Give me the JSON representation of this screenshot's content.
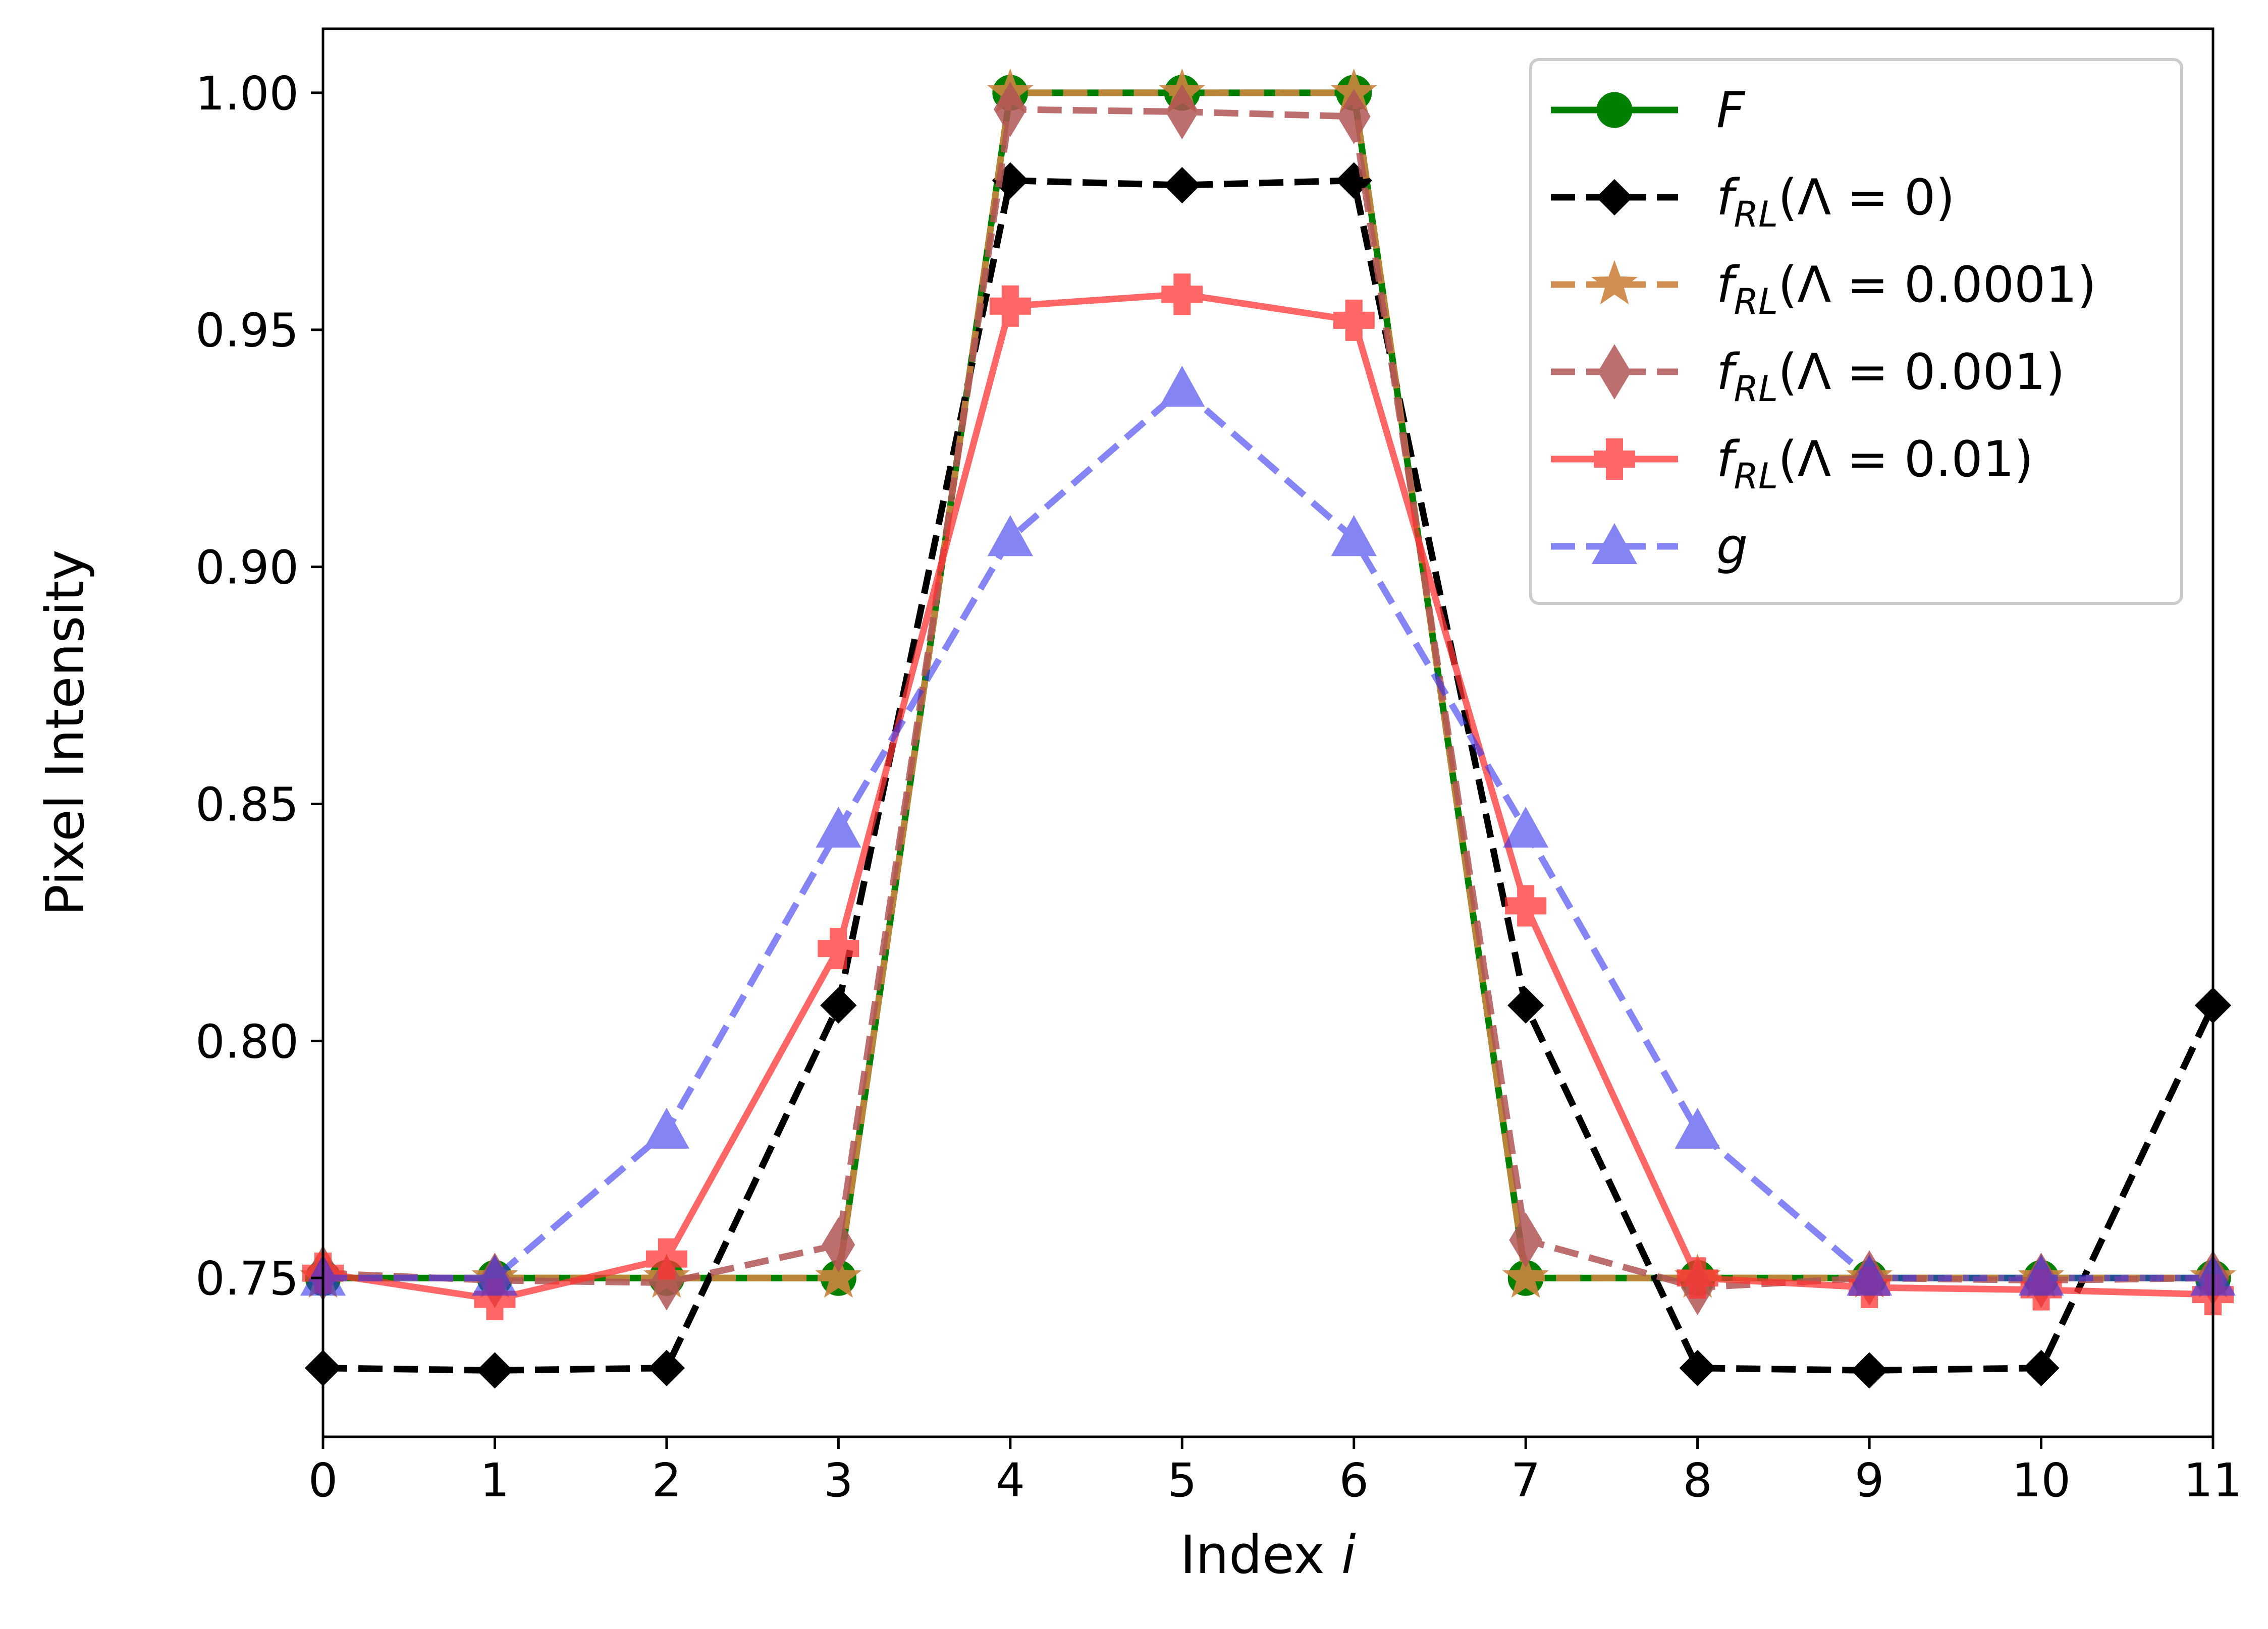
{
  "chart_data": {
    "type": "line",
    "title": "",
    "xlabel": "Index",
    "xlabel_var": "i",
    "ylabel": "Pixel Intensity",
    "xlim": [
      0,
      11
    ],
    "ylim": [
      0.7165,
      1.0135
    ],
    "x": [
      0,
      1,
      2,
      3,
      4,
      5,
      6,
      7,
      8,
      9,
      10,
      11
    ],
    "xticks": [
      0,
      1,
      2,
      3,
      4,
      5,
      6,
      7,
      8,
      9,
      10,
      11
    ],
    "xtick_labels": [
      "0",
      "1",
      "2",
      "3",
      "4",
      "5",
      "6",
      "7",
      "8",
      "9",
      "10",
      "11"
    ],
    "yticks": [
      0.75,
      0.8,
      0.85,
      0.9,
      0.95,
      1.0
    ],
    "ytick_labels": [
      "0.75",
      "0.80",
      "0.85",
      "0.90",
      "0.95",
      "1.00"
    ],
    "grid": false,
    "legend_position": "top-right",
    "series": [
      {
        "name": "F",
        "legend_label": {
          "base": "F",
          "sub": "",
          "arg": ""
        },
        "color": "#008000",
        "line_style": "solid",
        "marker": "circle",
        "opacity": 1.0,
        "values": [
          0.75,
          0.75,
          0.75,
          0.75,
          1.0,
          1.0,
          1.0,
          0.75,
          0.75,
          0.75,
          0.75,
          0.75
        ]
      },
      {
        "name": "f_RL(Λ = 0)",
        "legend_label": {
          "base": "f",
          "sub": "RL",
          "arg": "(Λ = 0)"
        },
        "color": "#000000",
        "line_style": "dashed",
        "marker": "diamond",
        "opacity": 1.0,
        "values": [
          0.731,
          0.7305,
          0.731,
          0.8075,
          0.9815,
          0.9805,
          0.9815,
          0.8075,
          0.731,
          0.7305,
          0.731,
          0.8075
        ]
      },
      {
        "name": "f_RL(Λ = 0.0001)",
        "legend_label": {
          "base": "f",
          "sub": "RL",
          "arg": "(Λ = 0.0001)"
        },
        "color": "#cd853f",
        "line_style": "dashed",
        "marker": "star",
        "opacity": 0.9,
        "values": [
          0.75,
          0.75,
          0.75,
          0.75,
          1.0,
          1.0,
          1.0,
          0.75,
          0.75,
          0.75,
          0.75,
          0.75
        ]
      },
      {
        "name": "f_RL(Λ = 0.001)",
        "legend_label": {
          "base": "f",
          "sub": "RL",
          "arg": "(Λ = 0.001)"
        },
        "color": "#b25555",
        "line_style": "dashed",
        "marker": "thin-diamond",
        "opacity": 0.85,
        "values": [
          0.751,
          0.7495,
          0.749,
          0.757,
          0.9965,
          0.996,
          0.995,
          0.758,
          0.748,
          0.75,
          0.7495,
          0.75
        ]
      },
      {
        "name": "f_RL(Λ = 0.01)",
        "legend_label": {
          "base": "f",
          "sub": "RL",
          "arg": "(Λ = 0.01)"
        },
        "color": "#ff3333",
        "line_style": "solid",
        "marker": "plus",
        "opacity": 0.75,
        "values": [
          0.751,
          0.7455,
          0.754,
          0.8195,
          0.955,
          0.9575,
          0.952,
          0.8285,
          0.75,
          0.748,
          0.7475,
          0.7465
        ]
      },
      {
        "name": "g",
        "legend_label": {
          "base": "g",
          "sub": "",
          "arg": ""
        },
        "color": "#3333ee",
        "line_style": "dashed",
        "marker": "triangle",
        "opacity": 0.6,
        "values": [
          0.75,
          0.75,
          0.781,
          0.8445,
          0.906,
          0.9375,
          0.906,
          0.8445,
          0.781,
          0.75,
          0.75,
          0.75
        ]
      }
    ]
  }
}
